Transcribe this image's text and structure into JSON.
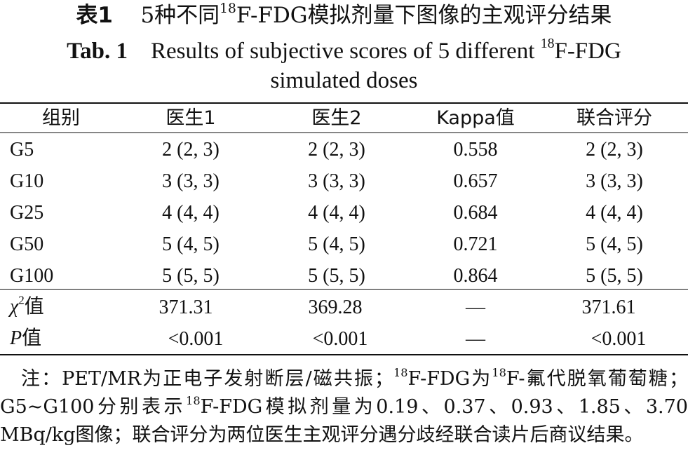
{
  "title_zh": {
    "label": "表1",
    "text_pre": "5种不同",
    "sup": "18",
    "text_post": "F-FDG模拟剂量下图像的主观评分结果"
  },
  "title_en": {
    "label": "Tab. 1",
    "text_pre": "Results of subjective scores of 5 different ",
    "sup": "18",
    "text_post": "F-FDG",
    "line2": "simulated doses"
  },
  "table": {
    "headers": [
      "组别",
      "医生1",
      "医生2",
      "Kappa值",
      "联合评分"
    ],
    "rows": [
      [
        "G5",
        "2 (2, 3)",
        "2 (2, 3)",
        "0.558",
        "2 (2, 3)"
      ],
      [
        "G10",
        "3 (3, 3)",
        "3 (3, 3)",
        "0.657",
        "3 (3, 3)"
      ],
      [
        "G25",
        "4 (4, 4)",
        "4 (4, 4)",
        "0.684",
        "4 (4, 4)"
      ],
      [
        "G50",
        "5 (4, 5)",
        "5 (4, 5)",
        "0.721",
        "5 (4, 5)"
      ],
      [
        "G100",
        "5 (5, 5)",
        "5 (5, 5)",
        "0.864",
        "5 (5, 5)"
      ]
    ],
    "stats": {
      "chi": {
        "sym": "χ",
        "sup": "2",
        "suffix": "值",
        "values": [
          "371.31",
          "369.28",
          "—",
          "371.61"
        ]
      },
      "p": {
        "sym": "P",
        "suffix": "值",
        "values": [
          "<0.001",
          "<0.001",
          "—",
          "<0.001"
        ]
      }
    }
  },
  "note": {
    "p1": "注：PET/MR为正电子发射断层/磁共振；",
    "sup": "18",
    "p2": "F-FDG为",
    "p3": "F-氟代脱氧葡萄糖；G5~G100分别表示",
    "p4": "F-FDG模拟剂量为0.19、0.37、0.93、1.85、3.70 MBq/kg图像；联合评分为两位医生主观评分遇分歧经联合读片后商议结果。"
  }
}
